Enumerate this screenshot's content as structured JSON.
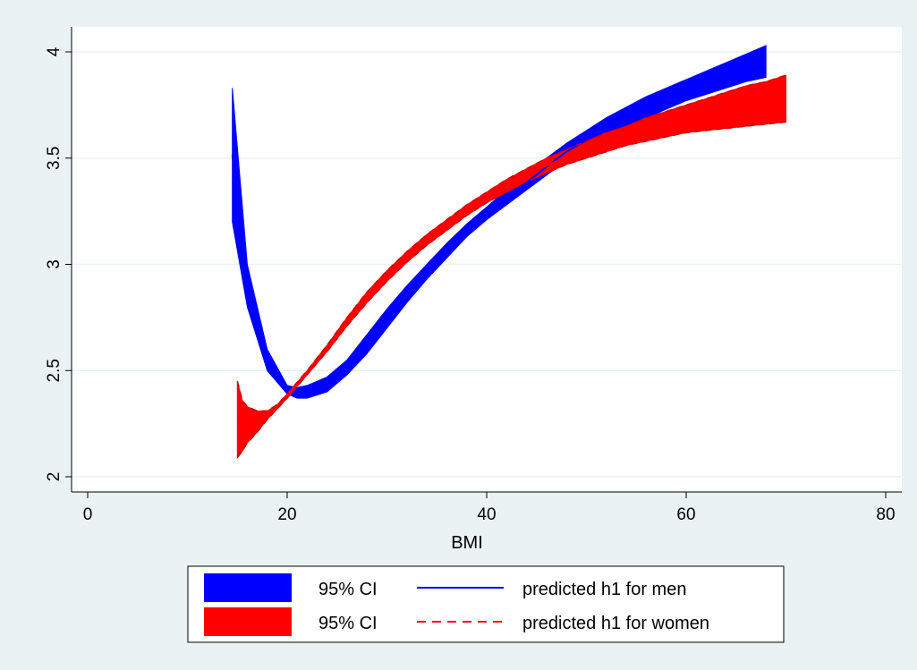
{
  "chart_data": {
    "type": "area",
    "title": "",
    "xlabel": "BMI",
    "ylabel": "",
    "xlim": [
      0,
      80
    ],
    "ylim": [
      2,
      4
    ],
    "x_ticks": [
      0,
      20,
      40,
      60,
      80
    ],
    "y_ticks": [
      2,
      2.5,
      3,
      3.5,
      4
    ],
    "grid": true,
    "legend_position": "bottom",
    "series": [
      {
        "color": "#0000ff",
        "ci_label": "95% CI",
        "line_label": "predicted h1 for men",
        "line_style": "solid",
        "x": [
          14.5,
          16,
          18,
          20,
          21,
          22,
          24,
          26,
          28,
          30,
          32,
          34,
          36,
          38,
          40,
          42,
          44,
          46,
          48,
          50,
          52,
          54,
          56,
          58,
          60,
          62,
          64,
          66,
          68
        ],
        "upper": [
          3.83,
          3.0,
          2.6,
          2.43,
          2.42,
          2.43,
          2.47,
          2.55,
          2.67,
          2.79,
          2.9,
          3.0,
          3.1,
          3.19,
          3.27,
          3.35,
          3.42,
          3.5,
          3.57,
          3.63,
          3.69,
          3.74,
          3.79,
          3.83,
          3.87,
          3.91,
          3.95,
          3.99,
          4.03
        ],
        "lower": [
          3.2,
          2.8,
          2.5,
          2.39,
          2.37,
          2.37,
          2.4,
          2.48,
          2.58,
          2.7,
          2.82,
          2.93,
          3.03,
          3.13,
          3.21,
          3.28,
          3.35,
          3.42,
          3.49,
          3.54,
          3.6,
          3.65,
          3.69,
          3.73,
          3.77,
          3.8,
          3.83,
          3.86,
          3.88
        ]
      },
      {
        "color": "#ff0000",
        "ci_label": "95% CI",
        "line_label": "predicted h1 for women",
        "line_style": "dashed",
        "x": [
          15,
          15.5,
          16,
          17,
          18,
          19,
          20,
          22,
          24,
          26,
          28,
          30,
          32,
          34,
          36,
          38,
          40,
          42,
          44,
          46,
          48,
          50,
          52,
          54,
          56,
          58,
          60,
          62,
          64,
          66,
          68,
          70
        ],
        "upper": [
          2.45,
          2.36,
          2.33,
          2.31,
          2.31,
          2.34,
          2.39,
          2.5,
          2.62,
          2.75,
          2.87,
          2.97,
          3.06,
          3.14,
          3.21,
          3.28,
          3.34,
          3.4,
          3.45,
          3.5,
          3.54,
          3.58,
          3.62,
          3.65,
          3.69,
          3.72,
          3.75,
          3.78,
          3.81,
          3.84,
          3.86,
          3.89
        ],
        "lower": [
          2.09,
          2.12,
          2.16,
          2.21,
          2.27,
          2.32,
          2.37,
          2.48,
          2.59,
          2.71,
          2.82,
          2.92,
          3.01,
          3.09,
          3.16,
          3.23,
          3.29,
          3.34,
          3.39,
          3.43,
          3.47,
          3.5,
          3.53,
          3.56,
          3.58,
          3.6,
          3.62,
          3.63,
          3.64,
          3.65,
          3.66,
          3.67
        ]
      }
    ]
  }
}
